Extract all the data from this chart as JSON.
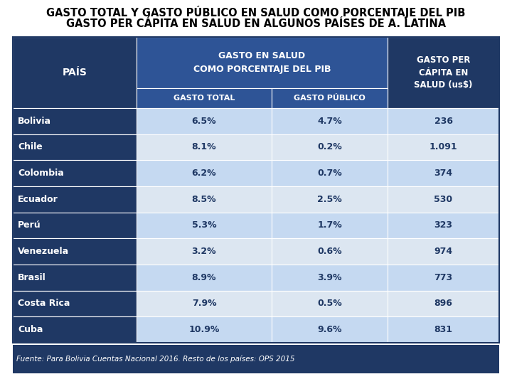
{
  "title_line1": "GASTO TOTAL Y GASTO PÚBLICO EN SALUD COMO PORCENTAJE DEL PIB",
  "title_line2": "GASTO PER CÁPITA EN SALUD EN ALGUNOS PAÍSES DE A. LATINA",
  "col_header1": "PAÍS",
  "col_header2_line1": "GASTO EN SALUD",
  "col_header2_line2": "COMO PORCENTAJE DEL PIB",
  "col_header3_line1": "GASTO PER",
  "col_header3_line2": "CÁPITA EN",
  "col_header3_line3": "SALUD (us$)",
  "sub_header1": "GASTO TOTAL",
  "sub_header2": "GASTO PÚBLICO",
  "countries": [
    "Bolivia",
    "Chile",
    "Colombia",
    "Ecuador",
    "Perú",
    "Venezuela",
    "Brasil",
    "Costa Rica",
    "Cuba"
  ],
  "gasto_total": [
    "6.5%",
    "8.1%",
    "6.2%",
    "8.5%",
    "5.3%",
    "3.2%",
    "8.9%",
    "7.9%",
    "10.9%"
  ],
  "gasto_publico": [
    "4.7%",
    "0.2%",
    "0.7%",
    "2.5%",
    "1.7%",
    "0.6%",
    "3.9%",
    "0.5%",
    "9.6%"
  ],
  "gasto_percapita": [
    "236",
    "1.091",
    "374",
    "530",
    "323",
    "974",
    "773",
    "896",
    "831"
  ],
  "color_dark_blue": "#1F3864",
  "color_medium_blue": "#2E5496",
  "color_light_blue": "#C5D9F1",
  "color_lighter_blue": "#DCE6F1",
  "color_white": "#FFFFFF",
  "footer_text": "Fuente: Para Bolivia Cuentas Nacional 2016. Resto de los países: OPS 2015",
  "title_fontsize": 10.5,
  "header_fontsize": 8.5,
  "data_fontsize": 9,
  "country_fontsize": 9
}
